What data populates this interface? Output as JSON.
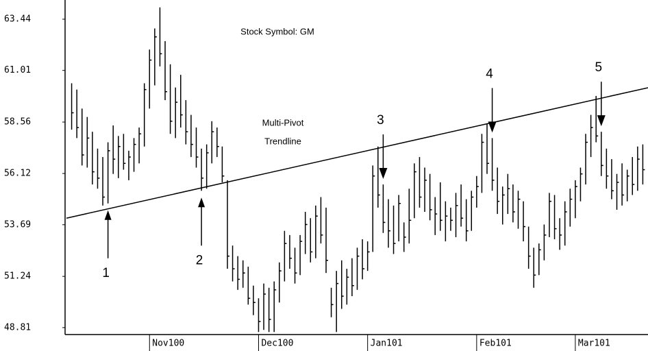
{
  "chart_data": {
    "type": "ohlc",
    "title": "Stock Symbol: GM",
    "trendline": {
      "label": [
        "Multi-Pivot",
        "Trendline"
      ],
      "start": [
        0,
        54.0
      ],
      "end": [
        112,
        60.19
      ]
    },
    "pivots": [
      "1",
      "2",
      "3",
      "4",
      "5"
    ],
    "xlim": [
      0,
      112
    ],
    "xticks": [
      {
        "value": 16,
        "label": "Nov100"
      },
      {
        "value": 37,
        "label": "Dec100"
      },
      {
        "value": 58,
        "label": "Jan101"
      },
      {
        "value": 79,
        "label": "Feb101"
      },
      {
        "value": 98,
        "label": "Mar101"
      }
    ],
    "ylim": [
      48.48,
      64.35
    ],
    "yticks": [
      48.81,
      51.24,
      53.69,
      56.12,
      58.56,
      61.01,
      63.44
    ],
    "color": "#000000",
    "high": [
      60.4,
      60.1,
      59.2,
      58.8,
      58.1,
      57.3,
      56.9,
      57.6,
      58.4,
      57.9,
      58.0,
      57.2,
      57.8,
      58.3,
      60.4,
      62.0,
      63.0,
      64.0,
      62.4,
      61.3,
      60.2,
      60.8,
      59.6,
      58.9,
      58.3,
      57.3,
      57.5,
      58.6,
      58.3,
      57.4,
      55.8,
      52.7,
      52.2,
      52.0,
      51.7,
      50.8,
      50.2,
      50.9,
      50.7,
      51.0,
      51.9,
      53.4,
      53.2,
      52.6,
      53.2,
      54.3,
      54.0,
      54.6,
      55.0,
      54.5,
      50.7,
      51.5,
      52.0,
      51.6,
      52.1,
      52.6,
      53.0,
      52.9,
      56.5,
      57.4,
      55.6,
      54.9,
      54.6,
      55.1,
      53.8,
      55.4,
      56.6,
      56.9,
      56.4,
      56.1,
      55.0,
      55.7,
      54.8,
      54.5,
      55.2,
      55.6,
      54.9,
      55.3,
      56.0,
      58.0,
      58.5,
      57.8,
      56.4,
      55.5,
      56.1,
      55.6,
      55.3,
      54.8,
      53.6,
      52.6,
      52.8,
      53.7,
      55.2,
      55.1,
      54.0,
      54.8,
      55.4,
      55.8,
      56.4,
      58.0,
      58.9,
      59.8,
      58.1,
      57.3,
      56.8,
      56.1,
      56.6,
      56.3,
      56.9,
      57.4,
      57.5
    ],
    "low": [
      58.2,
      57.8,
      56.5,
      56.4,
      55.6,
      55.4,
      54.6,
      54.7,
      56.1,
      55.9,
      56.3,
      55.8,
      56.2,
      56.6,
      57.4,
      59.2,
      60.3,
      61.2,
      59.6,
      58.0,
      57.8,
      58.3,
      57.5,
      56.9,
      56.4,
      55.3,
      55.4,
      56.6,
      56.9,
      55.7,
      51.6,
      51.0,
      50.6,
      50.7,
      49.9,
      49.4,
      48.6,
      48.7,
      48.6,
      48.6,
      50.0,
      51.0,
      51.6,
      50.9,
      51.3,
      52.3,
      51.9,
      52.1,
      52.8,
      51.4,
      49.3,
      48.6,
      49.7,
      49.9,
      50.3,
      50.6,
      51.1,
      51.5,
      52.4,
      54.5,
      53.3,
      52.6,
      52.3,
      52.9,
      52.4,
      52.8,
      54.0,
      54.5,
      54.3,
      53.9,
      53.2,
      53.4,
      52.9,
      53.4,
      53.1,
      53.6,
      52.9,
      53.4,
      54.5,
      55.2,
      56.1,
      55.3,
      54.2,
      53.7,
      54.2,
      53.8,
      53.5,
      52.9,
      51.6,
      50.7,
      51.3,
      52.0,
      53.1,
      53.0,
      52.5,
      52.7,
      53.6,
      54.0,
      54.8,
      55.6,
      56.9,
      57.6,
      56.0,
      55.4,
      54.9,
      54.4,
      54.6,
      54.8,
      55.1,
      55.3,
      55.6
    ],
    "close": [
      59.0,
      58.3,
      57.0,
      57.8,
      56.2,
      55.9,
      55.0,
      57.2,
      56.8,
      57.4,
      56.6,
      56.9,
      57.5,
      58.0,
      60.1,
      61.5,
      62.6,
      61.8,
      60.0,
      58.6,
      59.5,
      58.9,
      58.1,
      57.5,
      56.9,
      55.9,
      57.1,
      58.1,
      57.4,
      56.0,
      52.2,
      51.6,
      51.1,
      51.4,
      50.2,
      50.0,
      49.1,
      50.4,
      49.2,
      50.6,
      51.5,
      52.8,
      52.1,
      51.4,
      52.9,
      53.7,
      52.4,
      54.1,
      53.2,
      52.0,
      49.9,
      50.9,
      50.3,
      51.2,
      50.8,
      52.2,
      51.6,
      52.4,
      56.0,
      55.1,
      53.8,
      53.4,
      52.8,
      54.7,
      53.1,
      53.9,
      56.2,
      55.0,
      55.8,
      54.4,
      54.2,
      53.9,
      54.1,
      53.9,
      54.6,
      54.0,
      53.4,
      55.0,
      55.5,
      57.6,
      56.6,
      55.8,
      54.8,
      55.1,
      55.4,
      54.3,
      54.9,
      53.6,
      52.2,
      51.3,
      52.5,
      53.2,
      54.8,
      53.5,
      53.2,
      54.3,
      54.9,
      55.5,
      56.1,
      57.6,
      58.3,
      57.9,
      56.5,
      56.0,
      55.3,
      55.7,
      55.1,
      56.0,
      55.6,
      56.8,
      56.3
    ]
  }
}
